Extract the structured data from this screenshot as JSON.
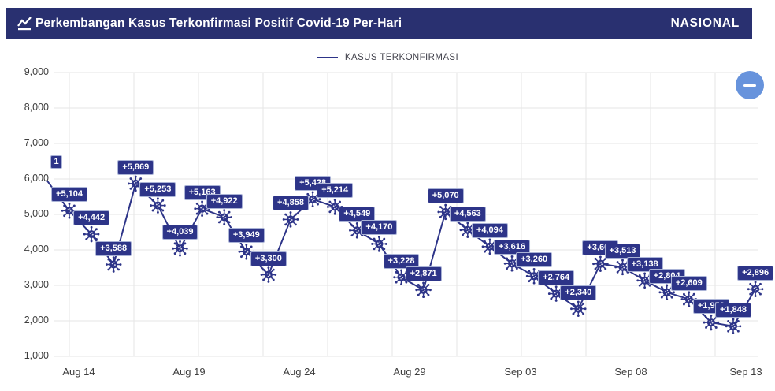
{
  "header": {
    "title": "Perkembangan Kasus Terkonfirmasi Positif Covid-19 Per-Hari",
    "icon": "line-chart-icon",
    "region_label": "NASIONAL"
  },
  "legend": {
    "series_label": "KASUS TERKONFIRMASI"
  },
  "controls": {
    "zoom_out_icon": "minus-icon"
  },
  "clipped_point_label_fragment": "1",
  "chart_data": {
    "type": "line",
    "title": "Perkembangan Kasus Terkonfirmasi Positif Covid-19 Per-Hari",
    "series": [
      {
        "name": "KASUS TERKONFIRMASI",
        "values": [
          5104,
          4442,
          3588,
          5869,
          5253,
          4039,
          5163,
          4922,
          3949,
          3300,
          4858,
          5428,
          5214,
          4549,
          4170,
          3228,
          2871,
          5070,
          4563,
          4094,
          3616,
          3260,
          2764,
          2340,
          3607,
          3513,
          3138,
          2804,
          2609,
          1953,
          1848,
          2896
        ],
        "point_labels": [
          "+5,104",
          "+4,442",
          "+3,588",
          "+5,869",
          "+5,253",
          "+4,039",
          "+5,163",
          "+4,922",
          "+3,949",
          "+3,300",
          "+4,858",
          "+5,428",
          "+5,214",
          "+4,549",
          "+4,170",
          "+3,228",
          "+2,871",
          "+5,070",
          "+4,563",
          "+4,094",
          "+3,616",
          "+3,260",
          "+2,764",
          "+2,340",
          "+3,607",
          "+3,513",
          "+3,138",
          "+2,804",
          "+2,609",
          "+1,953",
          "+1,848",
          "+2,896"
        ]
      }
    ],
    "lead_in_value": 5950,
    "x_ticks": [
      "Aug 14",
      "Aug 19",
      "Aug 24",
      "Aug 29",
      "Sep 03",
      "Sep 08",
      "Sep 13"
    ],
    "y_ticks": [
      "9,000",
      "8,000",
      "7,000",
      "6,000",
      "5,000",
      "4,000",
      "3,000",
      "2,000",
      "1,000"
    ],
    "ylim": [
      1000,
      9000
    ],
    "grid": "on",
    "legend_position": "top-center",
    "marker_icon": "coronavirus-icon",
    "colors": {
      "accent": "#2d3488",
      "header_bg": "#293070",
      "grid_line": "#e5e5e5",
      "axis_text": "#3e3e3e",
      "zoom_button_blue": "#6793dc"
    }
  }
}
